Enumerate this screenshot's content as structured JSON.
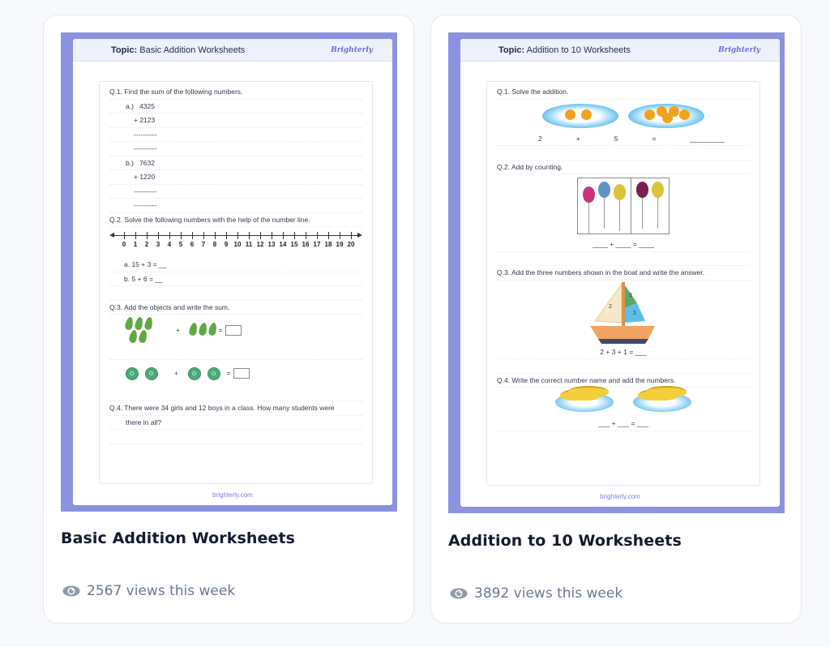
{
  "cards": [
    {
      "title": "Basic Addition Worksheets",
      "views": "2567 views this week",
      "worksheet": {
        "topic_label": "Topic:",
        "topic": "Basic Addition Worksheets",
        "brand": "Brighterly",
        "footer": "brighterly.com",
        "q1": {
          "text": "Q.1. Find the sum of the following numbers.",
          "a_label": "a.)",
          "a_num1": "4325",
          "a_num2": "+ 2123",
          "b_label": "b.)",
          "b_num1": "7632",
          "b_num2": "+ 1220",
          "dash": "----------"
        },
        "q2": {
          "text": "Q.2. Solve the following numbers with the help of the number line.",
          "ticks": [
            "0",
            "1",
            "2",
            "3",
            "4",
            "5",
            "6",
            "7",
            "8",
            "9",
            "10",
            "11",
            "12",
            "13",
            "14",
            "15",
            "16",
            "17",
            "18",
            "19",
            "20"
          ],
          "a": "a.   15 + 3 = __",
          "b": "b.   5 + 6 = __"
        },
        "q3": {
          "text": "Q.3. Add the objects and write the sum.",
          "plus": "+",
          "eq": "="
        },
        "q4": {
          "text": "Q.4. There were 34 girls and 12 boys in a class. How many students were",
          "text2": "there in all?"
        }
      }
    },
    {
      "title": "Addition to 10 Worksheets",
      "views": "3892 views this week",
      "worksheet": {
        "topic_label": "Topic:",
        "topic": "Addition to 10 Worksheets",
        "brand": "Brighterly",
        "footer": "brighterly.com",
        "q1": {
          "text": "Q.1. Solve the addition.",
          "n1": "2",
          "plus": "+",
          "n2": "5",
          "eq": "=",
          "blank": "_________"
        },
        "q2": {
          "text": "Q.2. Add by counting.",
          "equation": "____   +   ____   =   ____"
        },
        "q3": {
          "text": "Q.3.  Add the three numbers shown in the boat and write the answer.",
          "sail1": "2",
          "sail2": "3",
          "sail3": "1",
          "equation": "2 + 3 + 1 = ___"
        },
        "q4": {
          "text": "Q.4.  Write the correct number name and add the numbers.",
          "equation": "___ + ___ = ___"
        }
      }
    }
  ],
  "colors": {
    "sheet_border": "#8c92e0",
    "title": "#141a2e",
    "views": "#6b7890"
  }
}
